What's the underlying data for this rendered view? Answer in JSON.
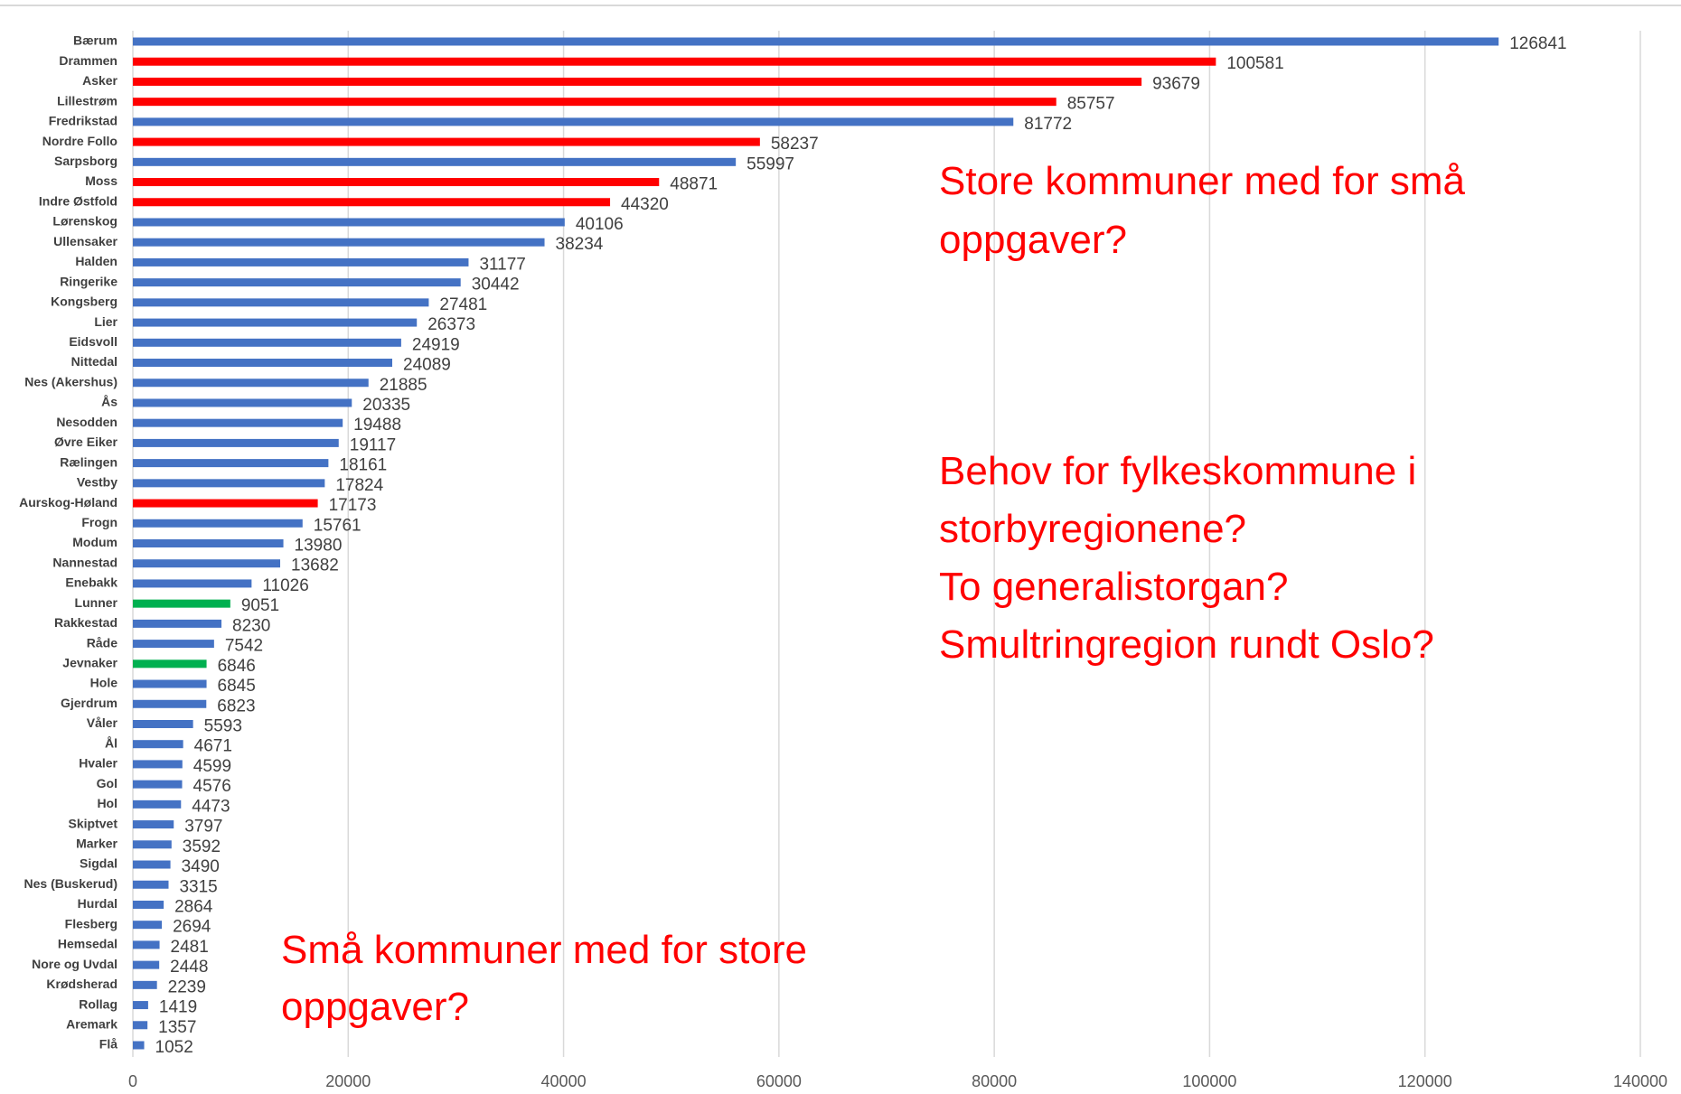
{
  "chart_data": {
    "type": "bar",
    "orientation": "horizontal",
    "categories": [
      "Bærum",
      "Drammen",
      "Asker",
      "Lillestrøm",
      "Fredrikstad",
      "Nordre Follo",
      "Sarpsborg",
      "Moss",
      "Indre Østfold",
      "Lørenskog",
      "Ullensaker",
      "Halden",
      "Ringerike",
      "Kongsberg",
      "Lier",
      "Eidsvoll",
      "Nittedal",
      "Nes (Akershus)",
      "Ås",
      "Nesodden",
      "Øvre Eiker",
      "Rælingen",
      "Vestby",
      "Aurskog-Høland",
      "Frogn",
      "Modum",
      "Nannestad",
      "Enebakk",
      "Lunner",
      "Rakkestad",
      "Råde",
      "Jevnaker",
      "Hole",
      "Gjerdrum",
      "Våler",
      "Ål",
      "Hvaler",
      "Gol",
      "Hol",
      "Skiptvet",
      "Marker",
      "Sigdal",
      "Nes (Buskerud)",
      "Hurdal",
      "Flesberg",
      "Hemsedal",
      "Nore og Uvdal",
      "Krødsherad",
      "Rollag",
      "Aremark",
      "Flå"
    ],
    "values": [
      126841,
      100581,
      93679,
      85757,
      81772,
      58237,
      55997,
      48871,
      44320,
      40106,
      38234,
      31177,
      30442,
      27481,
      26373,
      24919,
      24089,
      21885,
      20335,
      19488,
      19117,
      18161,
      17824,
      17173,
      15761,
      13980,
      13682,
      11026,
      9051,
      8230,
      7542,
      6846,
      6845,
      6823,
      5593,
      4671,
      4599,
      4576,
      4473,
      3797,
      3592,
      3490,
      3315,
      2864,
      2694,
      2481,
      2448,
      2239,
      1419,
      1357,
      1052
    ],
    "colors": [
      "#4472c4",
      "#ff0000",
      "#ff0000",
      "#ff0000",
      "#4472c4",
      "#ff0000",
      "#4472c4",
      "#ff0000",
      "#ff0000",
      "#4472c4",
      "#4472c4",
      "#4472c4",
      "#4472c4",
      "#4472c4",
      "#4472c4",
      "#4472c4",
      "#4472c4",
      "#4472c4",
      "#4472c4",
      "#4472c4",
      "#4472c4",
      "#4472c4",
      "#4472c4",
      "#ff0000",
      "#4472c4",
      "#4472c4",
      "#4472c4",
      "#4472c4",
      "#00b050",
      "#4472c4",
      "#4472c4",
      "#00b050",
      "#4472c4",
      "#4472c4",
      "#4472c4",
      "#4472c4",
      "#4472c4",
      "#4472c4",
      "#4472c4",
      "#4472c4",
      "#4472c4",
      "#4472c4",
      "#4472c4",
      "#4472c4",
      "#4472c4",
      "#4472c4",
      "#4472c4",
      "#4472c4",
      "#4472c4",
      "#4472c4",
      "#4472c4"
    ],
    "xlim": [
      0,
      140000
    ],
    "xticks": [
      0,
      20000,
      40000,
      60000,
      80000,
      100000,
      120000,
      140000
    ],
    "grid": true,
    "annotations": [
      {
        "lines": [
          "Store kommuner med for små",
          "oppgaver?"
        ]
      },
      {
        "lines": [
          "Behov for fylkeskommune i",
          "storbyregionene?",
          "To generalistorgan?",
          "Smultringregion rundt Oslo?"
        ]
      },
      {
        "lines": [
          "Små kommuner med for store",
          "oppgaver?"
        ]
      }
    ]
  }
}
